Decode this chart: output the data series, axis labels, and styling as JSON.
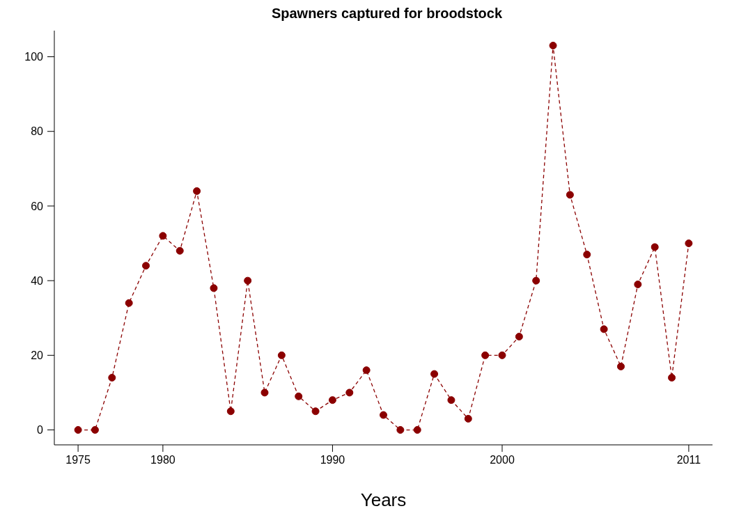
{
  "chart_data": {
    "type": "line",
    "title": "Spawners captured for broodstock",
    "xlabel": "Years",
    "x": [
      1975,
      1976,
      1977,
      1978,
      1979,
      1980,
      1981,
      1982,
      1983,
      1984,
      1985,
      1986,
      1987,
      1988,
      1989,
      1990,
      1991,
      1992,
      1993,
      1994,
      1995,
      1996,
      1997,
      1998,
      1999,
      2000,
      2001,
      2002,
      2003,
      2004,
      2005,
      2006,
      2007,
      2008,
      2009,
      2010,
      2011
    ],
    "series": [
      {
        "color": "#8b0000",
        "values": [
          0,
          0,
          14,
          34,
          44,
          52,
          48,
          64,
          38,
          5,
          40,
          10,
          20,
          9,
          5,
          8,
          10,
          16,
          4,
          0,
          0,
          15,
          8,
          3,
          20,
          20,
          25,
          40,
          103,
          63,
          47,
          27,
          17,
          39,
          49,
          14,
          50
        ]
      }
    ],
    "xlim": [
      1973.6,
      2012.4
    ],
    "xticks": [
      1975,
      1980,
      1990,
      2000,
      2011
    ],
    "ylim": [
      -4,
      107
    ],
    "yticks": [
      0,
      20,
      40,
      60,
      80,
      100
    ],
    "grid": false,
    "legend": false,
    "marker": "circle",
    "line_style": "dashed"
  }
}
